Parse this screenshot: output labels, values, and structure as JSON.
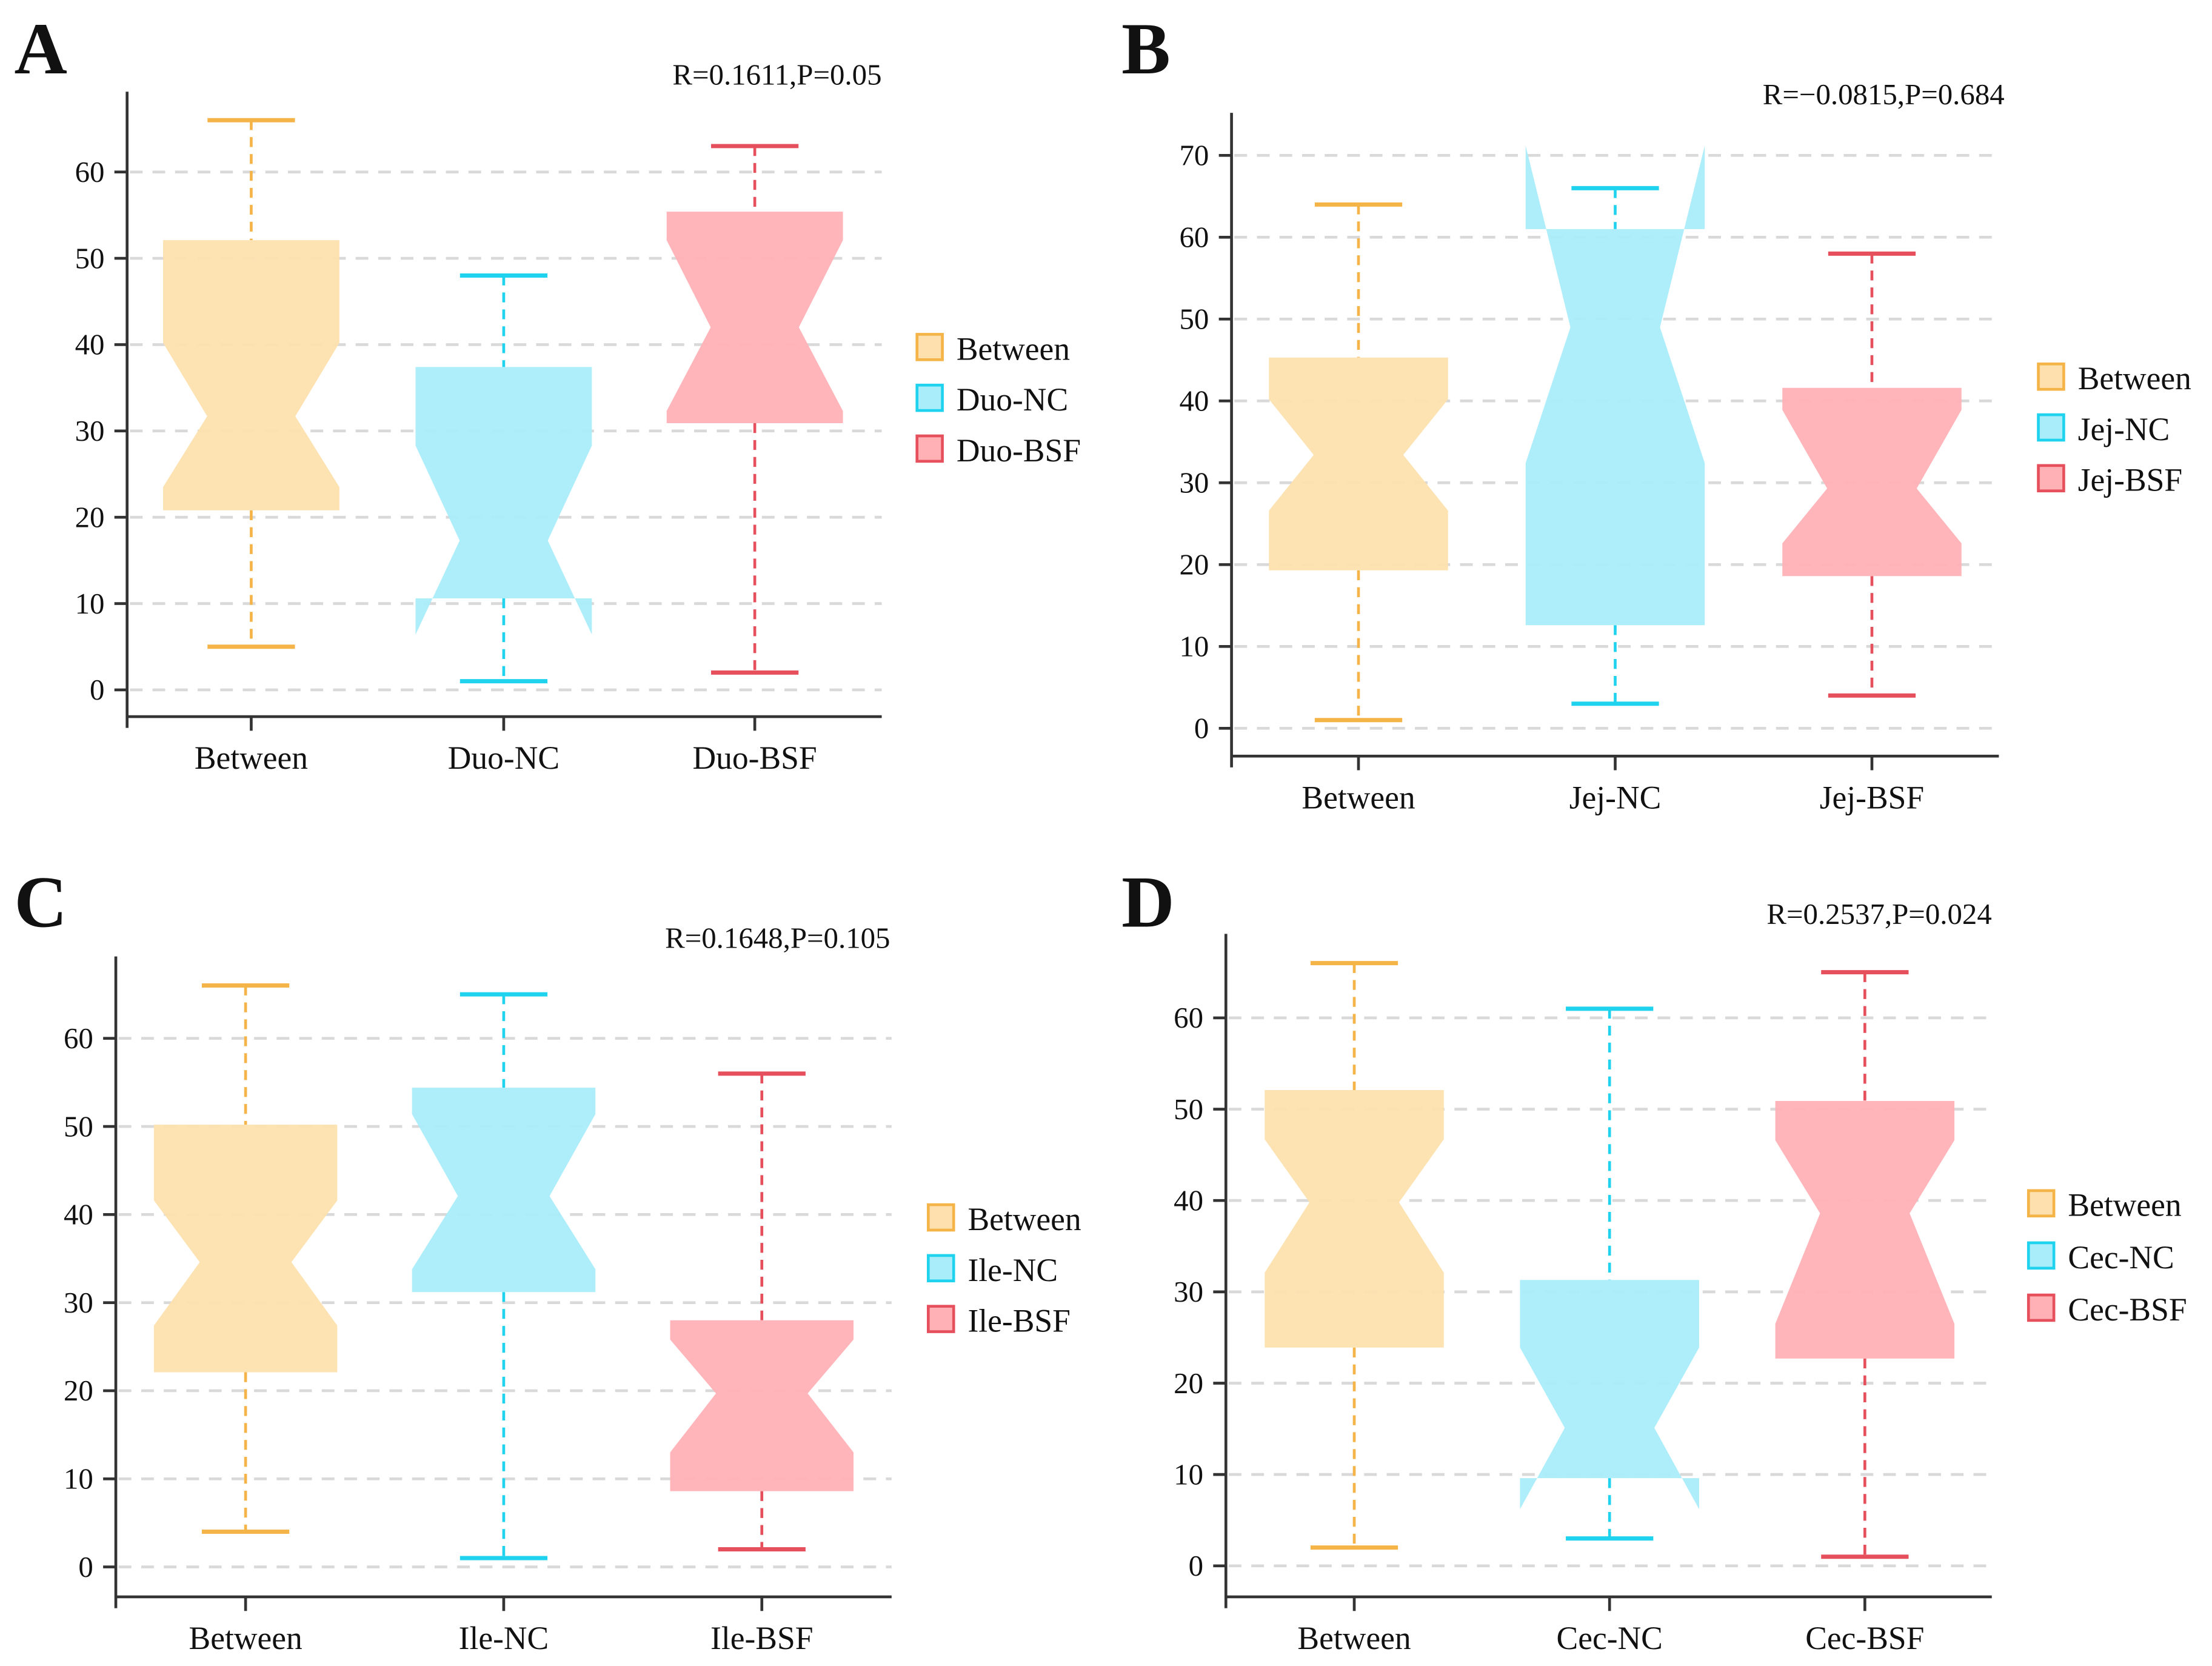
{
  "chart_data": [
    {
      "type": "boxplot",
      "panel_label": "A",
      "annotation": "R=0.1611,P=0.05",
      "categories": [
        "Between",
        "Duo-NC",
        "Duo-BSF"
      ],
      "legend": [
        "Between",
        "Duo-NC",
        "Duo-BSF"
      ],
      "legend_placement": "right",
      "yticks": [
        0,
        10,
        20,
        30,
        40,
        50,
        60
      ],
      "ylim": [
        -3.1,
        69.3
      ],
      "grid": true,
      "boxes": [
        {
          "min": 5,
          "q1": 20.8,
          "notch_low": 23.5,
          "median": 31.7,
          "notch_high": 40.2,
          "q3": 52.1,
          "max": 66
        },
        {
          "min": 1,
          "q1": 10.6,
          "notch_low": 6.4,
          "median": 17.3,
          "notch_high": 28.3,
          "q3": 37.4,
          "max": 48
        },
        {
          "min": 2,
          "q1": 30.9,
          "notch_low": 32.3,
          "median": 42,
          "notch_high": 52.1,
          "q3": 55.4,
          "max": 63
        }
      ]
    },
    {
      "type": "boxplot",
      "panel_label": "B",
      "annotation": "R=−0.0815,P=0.684",
      "categories": [
        "Between",
        "Jej-NC",
        "Jej-BSF"
      ],
      "legend": [
        "Between",
        "Jej-NC",
        "Jej-BSF"
      ],
      "legend_placement": "right",
      "yticks": [
        0,
        10,
        20,
        30,
        40,
        50,
        60,
        70
      ],
      "ylim": [
        -3.4,
        75.2
      ],
      "grid": true,
      "boxes": [
        {
          "min": 1,
          "q1": 19.3,
          "notch_low": 26.6,
          "median": 33.4,
          "notch_high": 40.2,
          "q3": 45.3,
          "max": 64
        },
        {
          "min": 3,
          "q1": 12.6,
          "notch_low": 32.4,
          "median": 49,
          "notch_high": 71.2,
          "q3": 61,
          "max": 66
        },
        {
          "min": 4,
          "q1": 18.6,
          "notch_low": 22.6,
          "median": 29.3,
          "notch_high": 38.9,
          "q3": 41.6,
          "max": 58
        }
      ]
    },
    {
      "type": "boxplot",
      "panel_label": "C",
      "annotation": "R=0.1648,P=0.105",
      "categories": [
        "Between",
        "Ile-NC",
        "Ile-BSF"
      ],
      "legend": [
        "Between",
        "Ile-NC",
        "Ile-BSF"
      ],
      "legend_placement": "right",
      "yticks": [
        0,
        10,
        20,
        30,
        40,
        50,
        60
      ],
      "ylim": [
        -3.4,
        69.3
      ],
      "grid": true,
      "boxes": [
        {
          "min": 4,
          "q1": 22.1,
          "notch_low": 27.4,
          "median": 34.6,
          "notch_high": 41.6,
          "q3": 50.2,
          "max": 66
        },
        {
          "min": 1,
          "q1": 31.2,
          "notch_low": 33.8,
          "median": 42.1,
          "notch_high": 51.4,
          "q3": 54.4,
          "max": 65
        },
        {
          "min": 2,
          "q1": 8.6,
          "notch_low": 13,
          "median": 19.7,
          "notch_high": 25.8,
          "q3": 28,
          "max": 56
        }
      ]
    },
    {
      "type": "boxplot",
      "panel_label": "D",
      "annotation": "R=0.2537,P=0.024",
      "categories": [
        "Between",
        "Cec-NC",
        "Cec-BSF"
      ],
      "legend": [
        "Between",
        "Cec-NC",
        "Cec-BSF"
      ],
      "legend_placement": "right",
      "yticks": [
        0,
        10,
        20,
        30,
        40,
        50,
        60
      ],
      "ylim": [
        -3.4,
        69.2
      ],
      "grid": true,
      "boxes": [
        {
          "min": 2,
          "q1": 23.9,
          "notch_low": 32.1,
          "median": 39.8,
          "notch_high": 46.7,
          "q3": 52.1,
          "max": 66
        },
        {
          "min": 3,
          "q1": 9.6,
          "notch_low": 6.2,
          "median": 15.1,
          "notch_high": 23.9,
          "q3": 31.3,
          "max": 61
        },
        {
          "min": 1,
          "q1": 22.7,
          "notch_low": 26.5,
          "median": 38.6,
          "notch_high": 46.6,
          "q3": 50.9,
          "max": 65
        }
      ]
    }
  ],
  "colors": {
    "between": {
      "fill": "#fde0ae",
      "stroke": "#f4b448"
    },
    "nc": {
      "fill": "#aaedfa",
      "stroke": "#1fd3ee"
    },
    "bsf": {
      "fill": "#ffb1b6",
      "stroke": "#e6505c"
    },
    "grid": "#d9d9d9",
    "axis": "#333333"
  }
}
